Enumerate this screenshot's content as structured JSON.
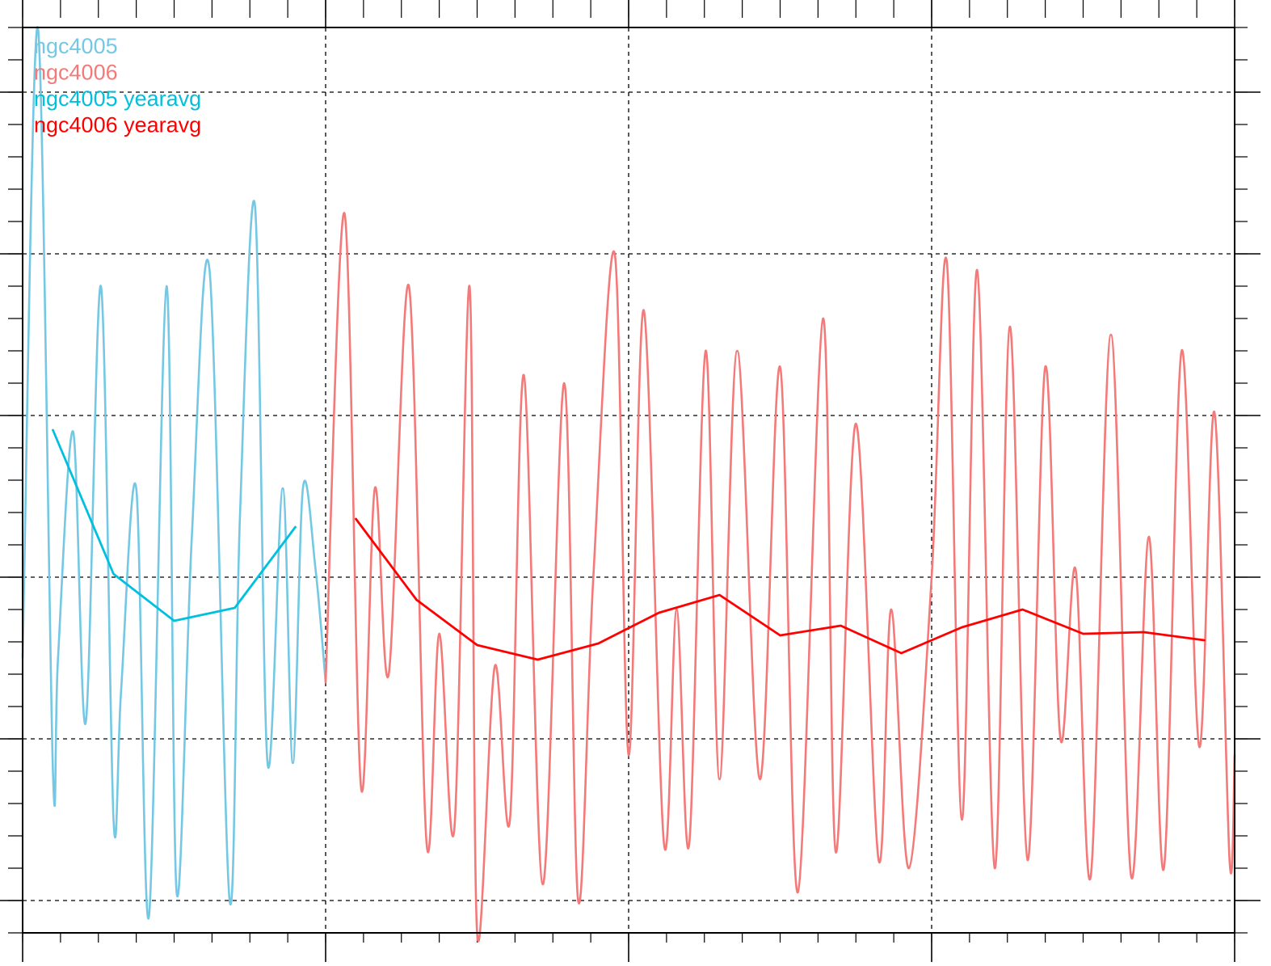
{
  "chart_data": {
    "type": "line",
    "title": "",
    "xlabel": "",
    "ylabel": "",
    "xlim": [
      0,
      48
    ],
    "ylim": [
      -2.2,
      3.4
    ],
    "grid": true,
    "legend_position": "top-left",
    "x_major_ticks": [
      0,
      12,
      24,
      36,
      48
    ],
    "x_minor_step": 1.5,
    "y_major_ticks": [
      -2,
      -1,
      0,
      1,
      2,
      3
    ],
    "y_minor_step": 0.2,
    "legend": [
      {
        "label": "ngc4005",
        "color": "#74c8e3"
      },
      {
        "label": "ngc4006",
        "color": "#f47a7a"
      },
      {
        "label": "ngc4005 yearavg",
        "color": "#00c0de"
      },
      {
        "label": "ngc4006 yearavg",
        "color": "#ff0000"
      }
    ],
    "series": [
      {
        "name": "ngc4005",
        "color": "#74c8e3",
        "style": "thin",
        "x": [
          0,
          0.6,
          1.2,
          1.4,
          2,
          2.5,
          3.1,
          3.6,
          3.9,
          4.5,
          5,
          5.7,
          6.1,
          6.7,
          7.4,
          8.2,
          8.6,
          9.2,
          9.7,
          10.3,
          10.7,
          11.1,
          11.6,
          12
        ],
        "y": [
          -0.5,
          3.4,
          -1.2,
          -0.5,
          0.9,
          -0.9,
          1.8,
          -1.5,
          -0.7,
          0.55,
          -2.1,
          1.8,
          -1.95,
          0.25,
          1.9,
          -2.0,
          0.35,
          2.3,
          -1.15,
          0.55,
          -1.15,
          0.55,
          0.05,
          -0.65
        ]
      },
      {
        "name": "ngc4006",
        "color": "#f47a7a",
        "style": "thin",
        "x": [
          12,
          12.75,
          13.4,
          13.95,
          14.5,
          15.3,
          16,
          16.5,
          17.1,
          17.7,
          18,
          18.7,
          19.3,
          19.85,
          20.6,
          21.45,
          22,
          22.6,
          23.45,
          24,
          24.6,
          25.4,
          25.9,
          26.4,
          27.05,
          27.6,
          28.3,
          29.2,
          30.0,
          30.7,
          31.7,
          32.2,
          33,
          33.9,
          34.4,
          35.1,
          36,
          36.6,
          37.2,
          37.8,
          38.5,
          39.1,
          39.8,
          40.5,
          41.1,
          41.7,
          42.3,
          43.1,
          43.9,
          44.6,
          45.2,
          45.9,
          46.6,
          47.2,
          47.8,
          48
        ],
        "y": [
          -0.65,
          2.25,
          -1.3,
          0.55,
          -0.6,
          1.8,
          -1.65,
          -0.35,
          -1.55,
          1.8,
          -2.2,
          -0.55,
          -1.5,
          1.25,
          -1.9,
          1.2,
          -2.0,
          0,
          2.0,
          -1.1,
          1.65,
          -1.65,
          -0.2,
          -1.65,
          1.4,
          -1.25,
          1.4,
          -1.25,
          1.3,
          -1.95,
          1.6,
          -1.7,
          0.95,
          -1.75,
          -0.2,
          -1.8,
          0,
          1.95,
          -1.5,
          1.9,
          -1.8,
          1.55,
          -1.75,
          1.3,
          -1.0,
          0.05,
          -1.85,
          1.5,
          -1.85,
          0.25,
          -1.8,
          1.4,
          -1.05,
          1.02,
          -1.75,
          -1.1
        ]
      },
      {
        "name": "ngc4005 yearavg",
        "color": "#00c0de",
        "style": "thick",
        "x": [
          1.2,
          3.6,
          6,
          8.4,
          10.8
        ],
        "y": [
          0.91,
          0.02,
          -0.27,
          -0.19,
          0.31
        ]
      },
      {
        "name": "ngc4006 yearavg",
        "color": "#ff0000",
        "style": "thick",
        "x": [
          13.2,
          15.6,
          18,
          20.4,
          22.8,
          25.2,
          27.6,
          30,
          32.4,
          34.8,
          37.2,
          39.6,
          42,
          44.4,
          46.8
        ],
        "y": [
          0.36,
          -0.14,
          -0.42,
          -0.51,
          -0.41,
          -0.22,
          -0.11,
          -0.36,
          -0.3,
          -0.47,
          -0.31,
          -0.2,
          -0.35,
          -0.34,
          -0.39
        ]
      }
    ]
  }
}
